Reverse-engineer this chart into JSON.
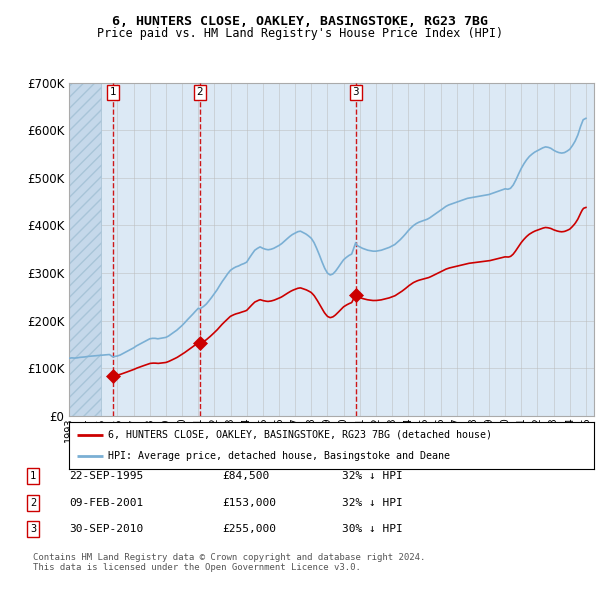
{
  "title1": "6, HUNTERS CLOSE, OAKLEY, BASINGSTOKE, RG23 7BG",
  "title2": "Price paid vs. HM Land Registry's House Price Index (HPI)",
  "ylim": [
    0,
    700000
  ],
  "yticks": [
    0,
    100000,
    200000,
    300000,
    400000,
    500000,
    600000,
    700000
  ],
  "ytick_labels": [
    "£0",
    "£100K",
    "£200K",
    "£300K",
    "£400K",
    "£500K",
    "£600K",
    "£700K"
  ],
  "xlim_start": 1993.0,
  "xlim_end": 2025.5,
  "background_color": "#ffffff",
  "plot_bg_color": "#dce9f5",
  "grid_color": "#bbbbbb",
  "red_line_color": "#cc0000",
  "blue_line_color": "#7aafd4",
  "marker_color": "#cc0000",
  "sale1_price": 84500,
  "sale1_x": 1995.72,
  "sale2_price": 153000,
  "sale2_x": 2001.11,
  "sale3_price": 255000,
  "sale3_x": 2010.75,
  "hatch_end": 1995.0,
  "hpi_line_label": "HPI: Average price, detached house, Basingstoke and Deane",
  "price_line_label": "6, HUNTERS CLOSE, OAKLEY, BASINGSTOKE, RG23 7BG (detached house)",
  "footnote1": "Contains HM Land Registry data © Crown copyright and database right 2024.",
  "footnote2": "This data is licensed under the Open Government Licence v3.0.",
  "table_rows": [
    [
      "1",
      "22-SEP-1995",
      "£84,500",
      "32% ↓ HPI"
    ],
    [
      "2",
      "09-FEB-2001",
      "£153,000",
      "32% ↓ HPI"
    ],
    [
      "3",
      "30-SEP-2010",
      "£255,000",
      "30% ↓ HPI"
    ]
  ]
}
